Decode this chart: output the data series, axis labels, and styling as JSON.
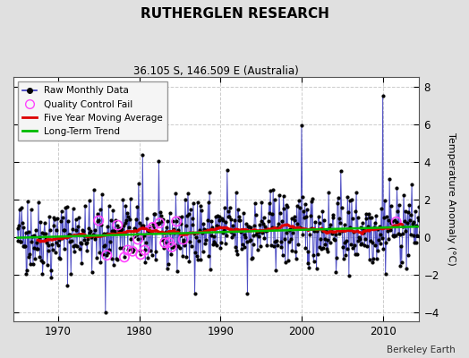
{
  "title": "RUTHERGLEN RESEARCH",
  "subtitle": "36.105 S, 146.509 E (Australia)",
  "ylabel": "Temperature Anomaly (°C)",
  "attribution": "Berkeley Earth",
  "xlim": [
    1964.5,
    2014.5
  ],
  "ylim": [
    -4.5,
    8.5
  ],
  "yticks": [
    -4,
    -2,
    0,
    2,
    4,
    6,
    8
  ],
  "xticks": [
    1970,
    1980,
    1990,
    2000,
    2010
  ],
  "bg_color": "#e0e0e0",
  "plot_bg_color": "#ffffff",
  "grid_color": "#cccccc",
  "raw_line_color": "#3333bb",
  "raw_dot_color": "#000000",
  "moving_avg_color": "#dd0000",
  "trend_color": "#00bb00",
  "qc_fail_color": "#ff44ff",
  "seed": 42,
  "n_years": 50,
  "start_year": 1965,
  "trend_slope": 0.012,
  "trend_intercept": -0.05
}
